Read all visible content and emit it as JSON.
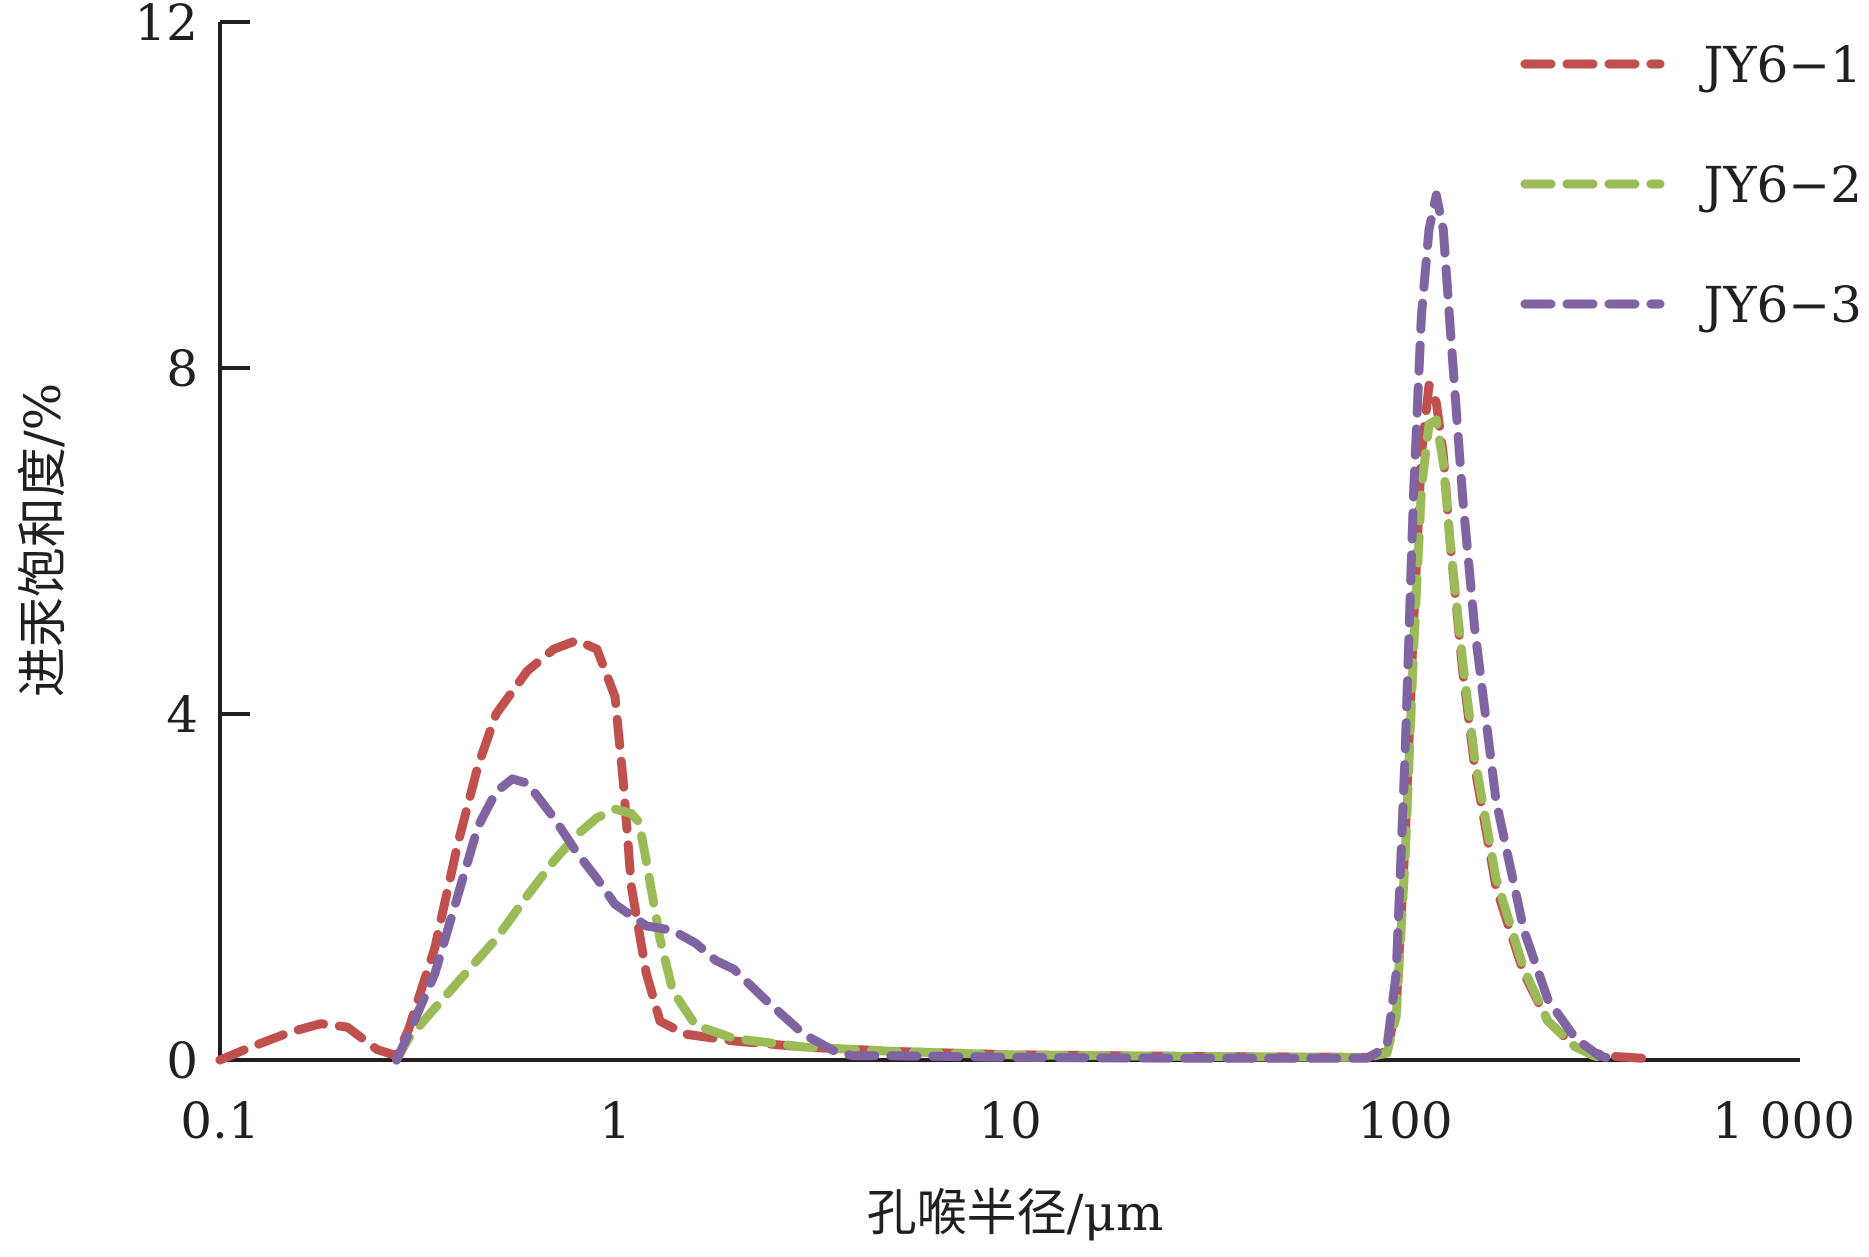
{
  "chart_data": {
    "type": "line",
    "xlabel": "孔喉半径/μm",
    "ylabel": "进汞饱和度/%",
    "xscale": "log",
    "xlim": [
      0.1,
      1000
    ],
    "ylim": [
      0,
      12
    ],
    "xticks": [
      {
        "value": 0.1,
        "label": "0.1"
      },
      {
        "value": 1,
        "label": "1"
      },
      {
        "value": 10,
        "label": "10"
      },
      {
        "value": 100,
        "label": "100"
      },
      {
        "value": 1000,
        "label": "1 000"
      }
    ],
    "yticks": [
      {
        "value": 0,
        "label": "0"
      },
      {
        "value": 4,
        "label": "4"
      },
      {
        "value": 8,
        "label": "8"
      },
      {
        "value": 12,
        "label": "12"
      }
    ],
    "legend_position": "top-right",
    "series": [
      {
        "name": "JY6−1",
        "color": "#c0504d",
        "points": [
          [
            0.1,
            0.0
          ],
          [
            0.12,
            0.15
          ],
          [
            0.15,
            0.32
          ],
          [
            0.18,
            0.42
          ],
          [
            0.21,
            0.38
          ],
          [
            0.25,
            0.12
          ],
          [
            0.28,
            0.05
          ],
          [
            0.3,
            0.35
          ],
          [
            0.35,
            1.3
          ],
          [
            0.4,
            2.5
          ],
          [
            0.45,
            3.4
          ],
          [
            0.5,
            4.0
          ],
          [
            0.6,
            4.5
          ],
          [
            0.7,
            4.75
          ],
          [
            0.8,
            4.85
          ],
          [
            0.9,
            4.75
          ],
          [
            1.0,
            4.2
          ],
          [
            1.05,
            3.2
          ],
          [
            1.1,
            2.0
          ],
          [
            1.2,
            1.0
          ],
          [
            1.3,
            0.45
          ],
          [
            1.5,
            0.3
          ],
          [
            2,
            0.22
          ],
          [
            3,
            0.15
          ],
          [
            5,
            0.1
          ],
          [
            10,
            0.06
          ],
          [
            30,
            0.04
          ],
          [
            80,
            0.03
          ],
          [
            90,
            0.1
          ],
          [
            95,
            0.6
          ],
          [
            100,
            2.5
          ],
          [
            105,
            5.0
          ],
          [
            110,
            7.0
          ],
          [
            115,
            7.8
          ],
          [
            120,
            7.6
          ],
          [
            125,
            7.0
          ],
          [
            130,
            6.0
          ],
          [
            140,
            4.5
          ],
          [
            150,
            3.4
          ],
          [
            170,
            2.0
          ],
          [
            200,
            1.0
          ],
          [
            230,
            0.45
          ],
          [
            270,
            0.15
          ],
          [
            320,
            0.05
          ],
          [
            400,
            0.02
          ]
        ]
      },
      {
        "name": "JY6−2",
        "color": "#9bbb59",
        "points": [
          [
            0.28,
            0.0
          ],
          [
            0.3,
            0.25
          ],
          [
            0.35,
            0.6
          ],
          [
            0.4,
            0.9
          ],
          [
            0.5,
            1.4
          ],
          [
            0.6,
            1.9
          ],
          [
            0.7,
            2.3
          ],
          [
            0.8,
            2.6
          ],
          [
            0.9,
            2.8
          ],
          [
            1.0,
            2.9
          ],
          [
            1.1,
            2.85
          ],
          [
            1.15,
            2.75
          ],
          [
            1.2,
            2.3
          ],
          [
            1.3,
            1.4
          ],
          [
            1.4,
            0.8
          ],
          [
            1.6,
            0.4
          ],
          [
            2,
            0.25
          ],
          [
            3,
            0.15
          ],
          [
            5,
            0.1
          ],
          [
            10,
            0.06
          ],
          [
            30,
            0.04
          ],
          [
            80,
            0.03
          ],
          [
            90,
            0.08
          ],
          [
            95,
            0.5
          ],
          [
            100,
            2.3
          ],
          [
            105,
            4.7
          ],
          [
            110,
            6.6
          ],
          [
            115,
            7.35
          ],
          [
            120,
            7.4
          ],
          [
            125,
            6.9
          ],
          [
            130,
            6.0
          ],
          [
            140,
            4.6
          ],
          [
            150,
            3.5
          ],
          [
            170,
            2.1
          ],
          [
            200,
            1.05
          ],
          [
            230,
            0.45
          ],
          [
            270,
            0.15
          ],
          [
            300,
            0.05
          ],
          [
            330,
            0.0
          ]
        ]
      },
      {
        "name": "JY6−3",
        "color": "#8064a2",
        "points": [
          [
            0.28,
            0.0
          ],
          [
            0.3,
            0.3
          ],
          [
            0.35,
            1.0
          ],
          [
            0.4,
            1.9
          ],
          [
            0.45,
            2.7
          ],
          [
            0.5,
            3.1
          ],
          [
            0.55,
            3.25
          ],
          [
            0.6,
            3.2
          ],
          [
            0.7,
            2.8
          ],
          [
            0.8,
            2.4
          ],
          [
            0.9,
            2.1
          ],
          [
            1.0,
            1.8
          ],
          [
            1.2,
            1.55
          ],
          [
            1.4,
            1.5
          ],
          [
            1.6,
            1.35
          ],
          [
            1.8,
            1.15
          ],
          [
            2.0,
            1.05
          ],
          [
            2.4,
            0.7
          ],
          [
            3.0,
            0.3
          ],
          [
            3.6,
            0.1
          ],
          [
            4,
            0.05
          ],
          [
            5,
            0.05
          ],
          [
            10,
            0.03
          ],
          [
            30,
            0.02
          ],
          [
            80,
            0.02
          ],
          [
            90,
            0.15
          ],
          [
            95,
            1.0
          ],
          [
            100,
            3.5
          ],
          [
            105,
            6.5
          ],
          [
            110,
            8.6
          ],
          [
            115,
            9.6
          ],
          [
            120,
            10.0
          ],
          [
            125,
            9.6
          ],
          [
            130,
            8.5
          ],
          [
            140,
            6.5
          ],
          [
            150,
            5.0
          ],
          [
            170,
            3.0
          ],
          [
            200,
            1.5
          ],
          [
            230,
            0.7
          ],
          [
            270,
            0.25
          ],
          [
            310,
            0.05
          ],
          [
            330,
            0.02
          ]
        ]
      }
    ]
  }
}
